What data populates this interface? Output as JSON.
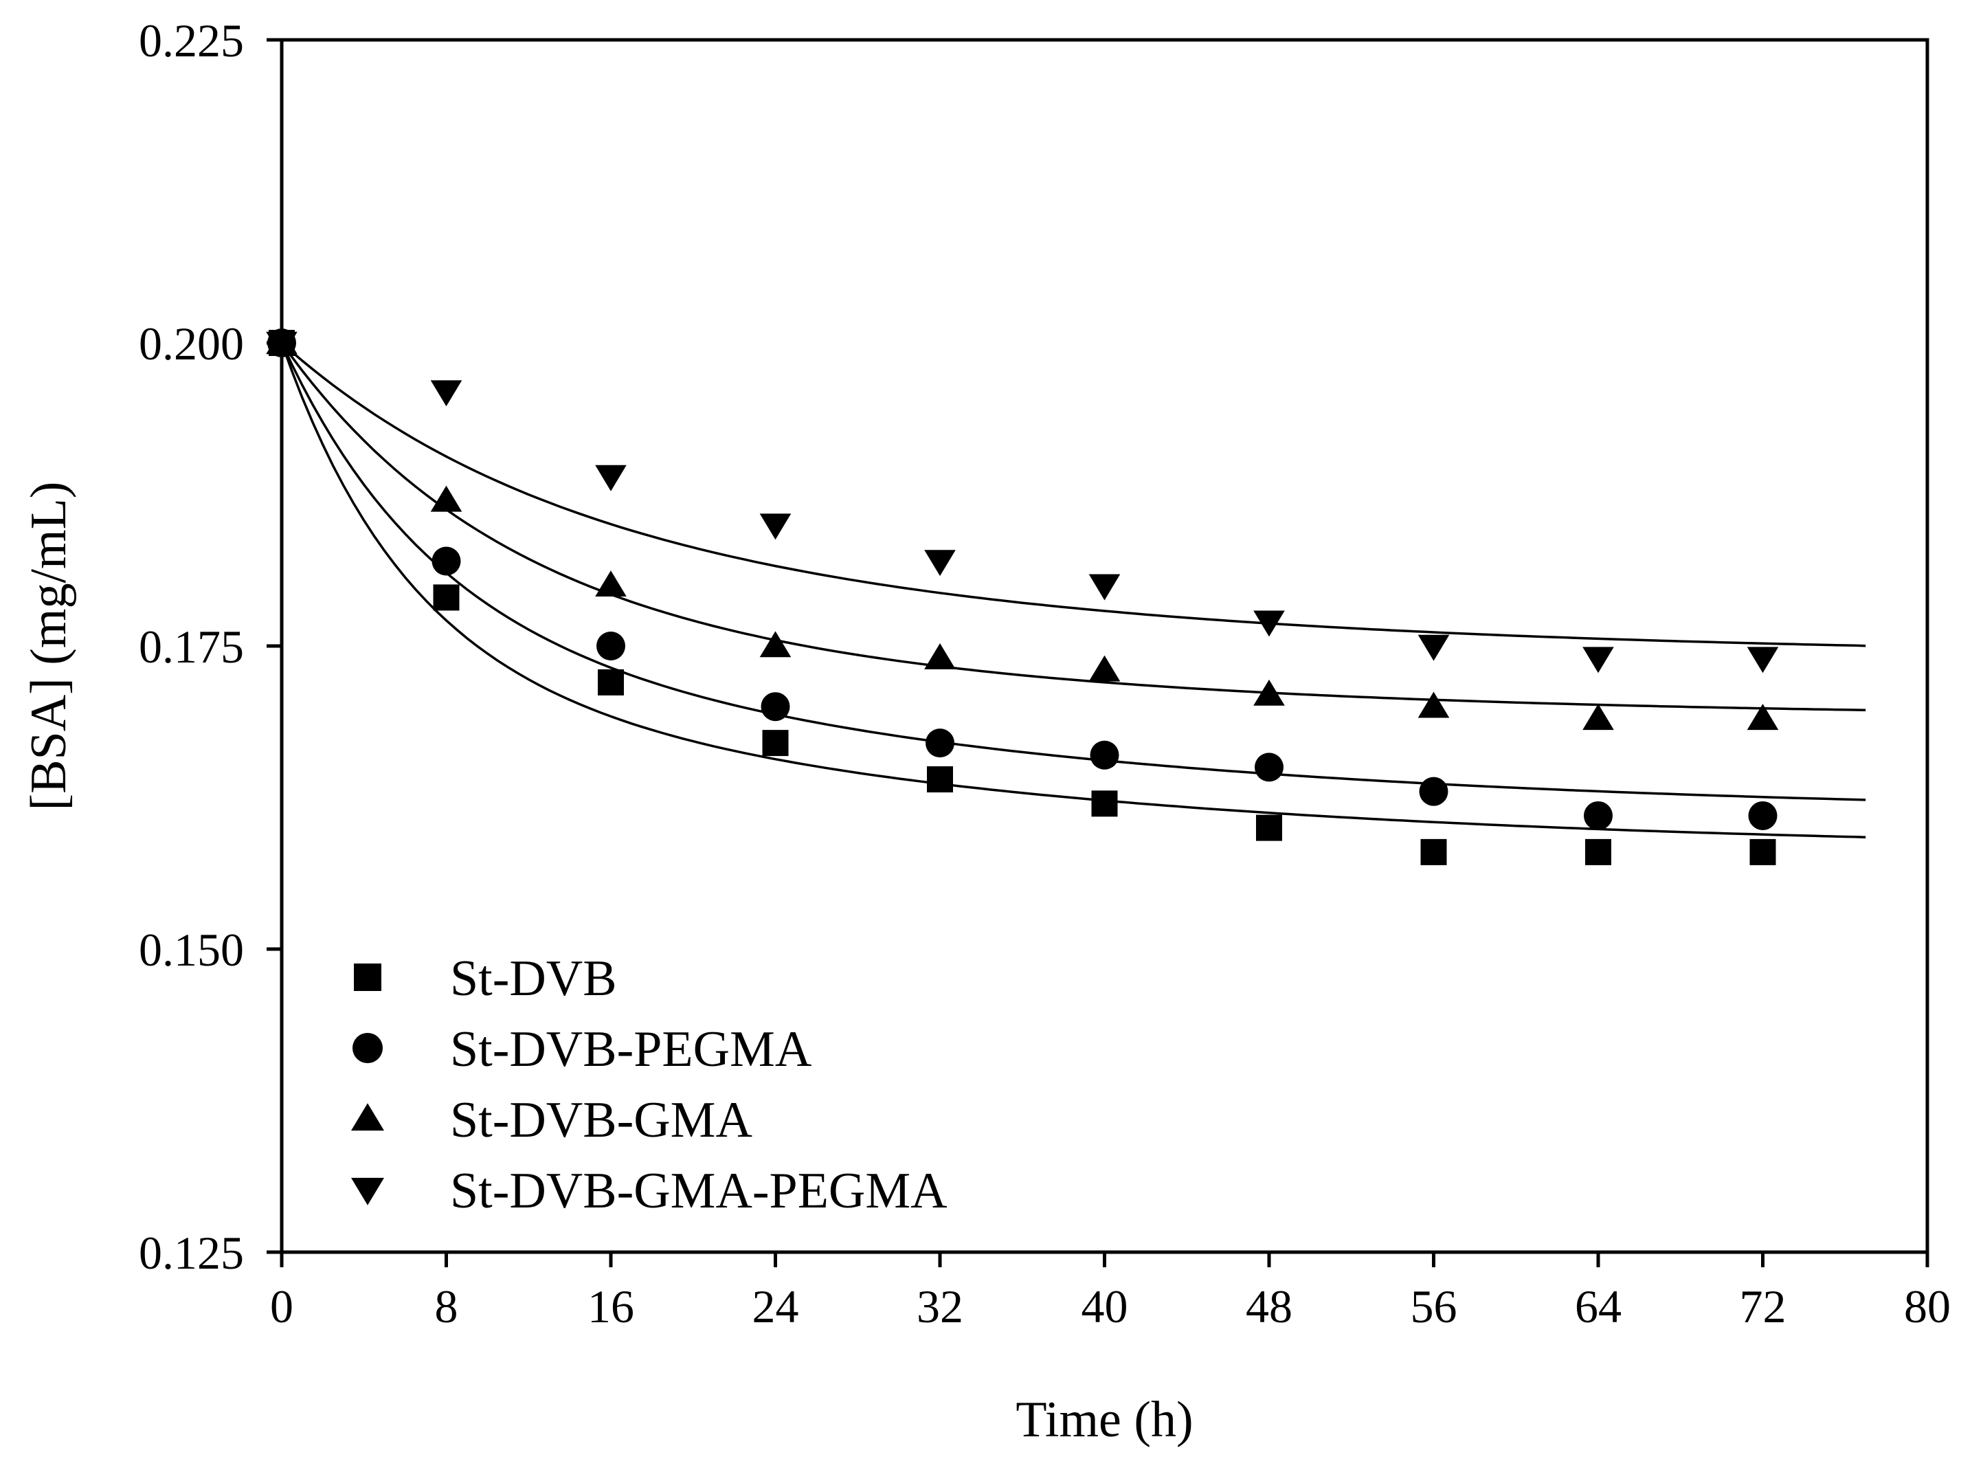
{
  "chart_data": {
    "type": "scatter",
    "title": "",
    "xlabel": "Time (h)",
    "ylabel": "[BSA] (mg/mL)",
    "xlim": [
      0,
      80
    ],
    "ylim": [
      0.125,
      0.225
    ],
    "x_ticks": [
      "0",
      "8",
      "16",
      "24",
      "32",
      "40",
      "48",
      "56",
      "64",
      "72",
      "80"
    ],
    "y_ticks": [
      "0.125",
      "0.150",
      "0.175",
      "0.200",
      "0.225"
    ],
    "legend_position": "bottom-left",
    "series": [
      {
        "name": "St-DVB",
        "marker": "square",
        "x": [
          0,
          8,
          16,
          24,
          32,
          40,
          48,
          56,
          64,
          72
        ],
        "values": [
          0.2,
          0.179,
          0.172,
          0.167,
          0.164,
          0.162,
          0.16,
          0.158,
          0.158,
          0.158
        ],
        "fit": {
          "y0": 0.2,
          "a1": 0.026,
          "t1": 6.0,
          "a2": 0.016,
          "t2": 30.0
        }
      },
      {
        "name": "St-DVB-PEGMA",
        "marker": "circle",
        "x": [
          0,
          8,
          16,
          24,
          32,
          40,
          48,
          56,
          64,
          72
        ],
        "values": [
          0.2,
          0.182,
          0.175,
          0.17,
          0.167,
          0.166,
          0.165,
          0.163,
          0.161,
          0.161
        ],
        "fit": {
          "y0": 0.2,
          "a1": 0.022,
          "t1": 7.0,
          "a2": 0.017,
          "t2": 30.0
        }
      },
      {
        "name": "St-DVB-GMA",
        "marker": "triangle-up",
        "x": [
          0,
          8,
          16,
          24,
          32,
          40,
          48,
          56,
          64,
          72
        ],
        "values": [
          0.2,
          0.187,
          0.18,
          0.175,
          0.174,
          0.173,
          0.171,
          0.17,
          0.169,
          0.169
        ],
        "fit": {
          "y0": 0.2,
          "a1": 0.02,
          "t1": 10.0,
          "a2": 0.011,
          "t2": 28.0
        }
      },
      {
        "name": "St-DVB-GMA-PEGMA",
        "marker": "triangle-down",
        "x": [
          0,
          8,
          16,
          24,
          32,
          40,
          48,
          56,
          64,
          72
        ],
        "values": [
          0.2,
          0.196,
          0.189,
          0.185,
          0.182,
          0.18,
          0.177,
          0.175,
          0.174,
          0.174
        ],
        "fit": {
          "y0": 0.2,
          "a1": 0.013,
          "t1": 12.0,
          "a2": 0.013,
          "t2": 30.0
        }
      }
    ]
  }
}
